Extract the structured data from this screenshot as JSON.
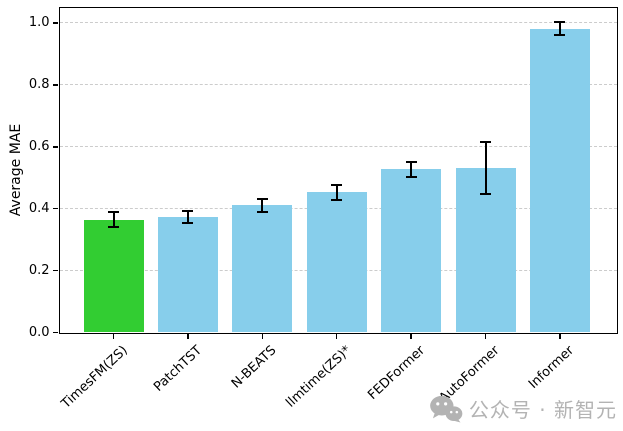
{
  "chart_data": {
    "type": "bar",
    "title": "",
    "xlabel": "",
    "ylabel": "Average MAE",
    "categories": [
      "TimesFM(ZS)",
      "PatchTST",
      "N-BEATS",
      "llmtime(ZS)*",
      "FEDFormer",
      "AutoFormer",
      "Informer"
    ],
    "values": [
      0.365,
      0.372,
      0.411,
      0.453,
      0.527,
      0.532,
      0.982
    ],
    "errors": [
      0.023,
      0.019,
      0.021,
      0.024,
      0.025,
      0.085,
      0.02
    ],
    "bar_colors": [
      "#32CD32",
      "#87CEEB",
      "#87CEEB",
      "#87CEEB",
      "#87CEEB",
      "#87CEEB",
      "#87CEEB"
    ],
    "highlighted_category": "TimesFM(ZS)",
    "error_bar_color": "#000000",
    "ytick_values": [
      0.0,
      0.2,
      0.4,
      0.6,
      0.8,
      1.0
    ],
    "ytick_labels": [
      "0.0",
      "0.2",
      "0.4",
      "0.6",
      "0.8",
      "1.0"
    ],
    "ylim": [
      0,
      1.05
    ],
    "grid": {
      "axis": "y",
      "style": "dashed",
      "color": "#cccccc"
    },
    "legend": "none"
  },
  "watermark": {
    "icon": "wechat-icon",
    "text": "公众号 · 新智元",
    "color": "#b3b3b3"
  }
}
